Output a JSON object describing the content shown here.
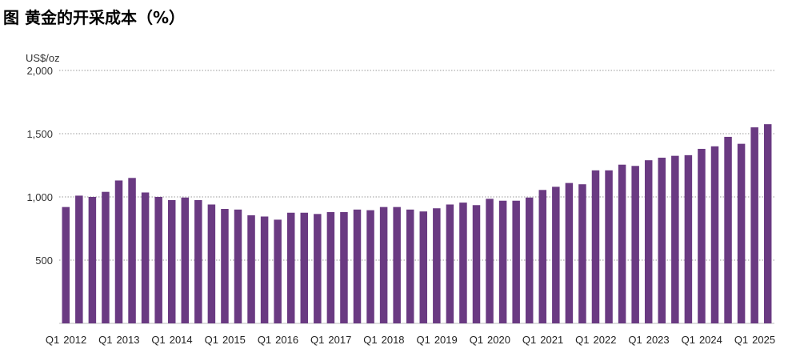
{
  "figure_title": "图 黄金的开采成本（%）",
  "chart_data": {
    "type": "bar",
    "title": "",
    "ylabel": "US$/oz",
    "xlabel": "",
    "ylim": [
      0,
      2000
    ],
    "yticks": [
      {
        "value": 500,
        "label": "500"
      },
      {
        "value": 1000,
        "label": "1,000"
      },
      {
        "value": 1500,
        "label": "1,500"
      },
      {
        "value": 2000,
        "label": "2,000"
      }
    ],
    "grid": true,
    "bar_color": "#6a3a82",
    "x_labels": [
      "Q1 2012",
      "Q1 2013",
      "Q1 2014",
      "Q1 2015",
      "Q1 2016",
      "Q1 2017",
      "Q1 2018",
      "Q1 2019",
      "Q1 2020",
      "Q1 2021",
      "Q1 2022",
      "Q1 2023",
      "Q1 2024",
      "Q1 2025"
    ],
    "values": [
      920,
      1010,
      1000,
      1040,
      1130,
      1150,
      1035,
      1000,
      975,
      995,
      975,
      940,
      905,
      900,
      855,
      845,
      820,
      875,
      875,
      865,
      880,
      880,
      900,
      895,
      920,
      920,
      900,
      885,
      910,
      940,
      955,
      935,
      985,
      970,
      970,
      995,
      1055,
      1080,
      1110,
      1100,
      1210,
      1210,
      1255,
      1245,
      1290,
      1310,
      1325,
      1330,
      1380,
      1400,
      1475,
      1420,
      1550,
      1575
    ]
  }
}
